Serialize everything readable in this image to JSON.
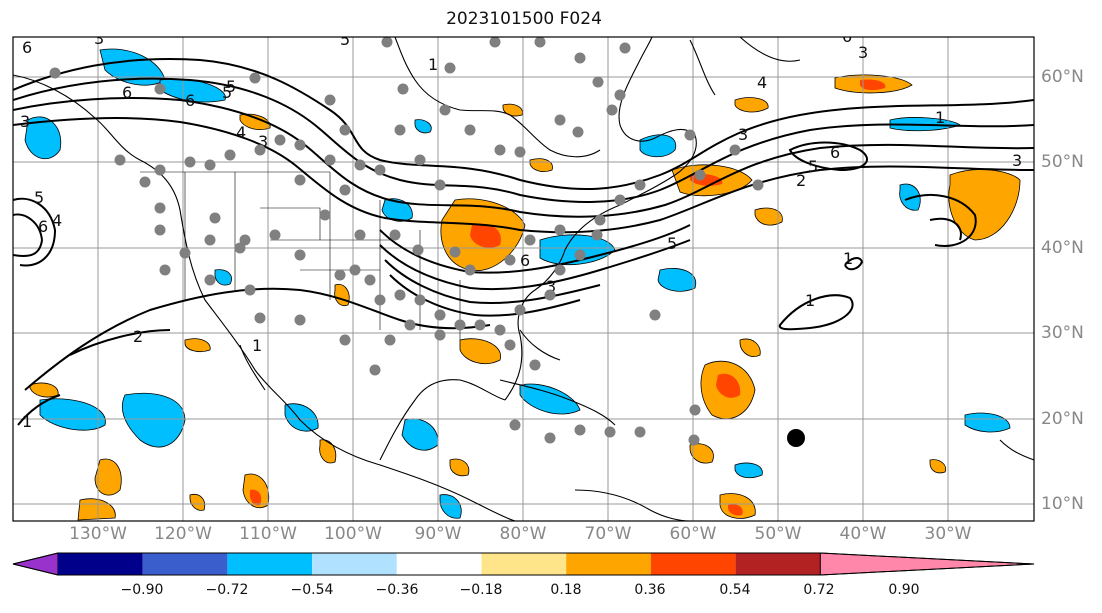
{
  "title": "2023101500 F024",
  "lon_labels": [
    "130°W",
    "120°W",
    "110°W",
    "100°W",
    "90°W",
    "80°W",
    "70°W",
    "60°W",
    "50°W",
    "40°W",
    "30°W"
  ],
  "lat_labels": [
    "60°N",
    "50°N",
    "40°N",
    "30°N",
    "20°N",
    "10°N"
  ],
  "colorbar": {
    "ticks": [
      "−0.90",
      "−0.72",
      "−0.54",
      "−0.36",
      "−0.18",
      "0.18",
      "0.36",
      "0.54",
      "0.72",
      "0.90"
    ],
    "colors": [
      "#9932cc",
      "#00008b",
      "#3a5fcd",
      "#00bfff",
      "#b0e2ff",
      "#ffffff",
      "#ffe58a",
      "#ffa500",
      "#ff4500",
      "#b22222",
      "#ff88aa"
    ]
  },
  "contour_labels": [
    "6",
    "3",
    "6",
    "5",
    "6",
    "4",
    "3",
    "1",
    "5",
    "4",
    "3",
    "3",
    "1",
    "6",
    "5",
    "3",
    "5",
    "6",
    "2",
    "1",
    "1",
    "5",
    "6",
    "4",
    "3",
    "2",
    "1",
    "1",
    "3",
    "5",
    "6"
  ],
  "marker_color": "#000000",
  "dot_color": "#808080"
}
